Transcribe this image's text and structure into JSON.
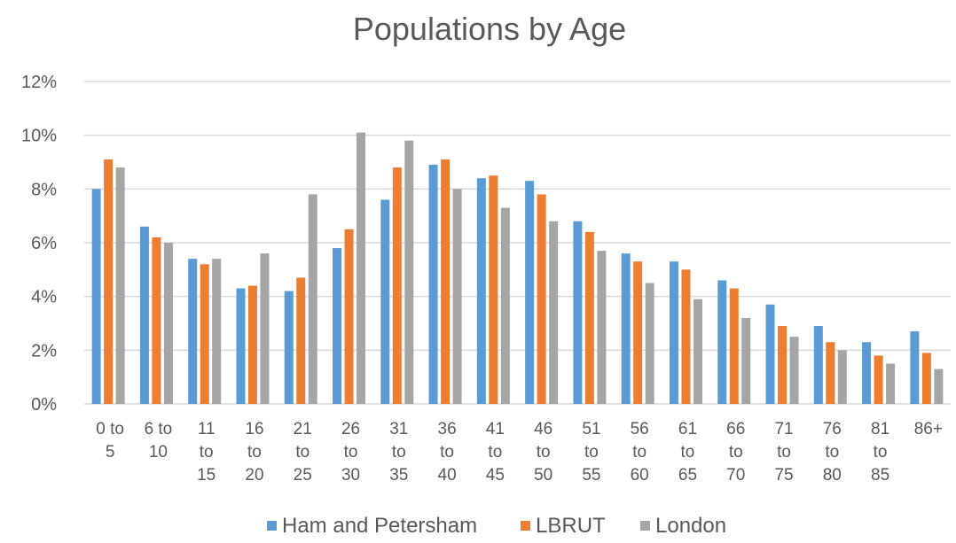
{
  "chart_data": {
    "type": "bar",
    "title": "Populations by Age",
    "xlabel": "",
    "ylabel": "",
    "ylim": [
      0,
      12
    ],
    "yticks": [
      "0%",
      "2%",
      "4%",
      "6%",
      "8%",
      "10%",
      "12%"
    ],
    "categories": [
      [
        "0 to",
        "5"
      ],
      [
        "6 to",
        "10"
      ],
      [
        "11",
        "to",
        "15"
      ],
      [
        "16",
        "to",
        "20"
      ],
      [
        "21",
        "to",
        "25"
      ],
      [
        "26",
        "to",
        "30"
      ],
      [
        "31",
        "to",
        "35"
      ],
      [
        "36",
        "to",
        "40"
      ],
      [
        "41",
        "to",
        "45"
      ],
      [
        "46",
        "to",
        "50"
      ],
      [
        "51",
        "to",
        "55"
      ],
      [
        "56",
        "to",
        "60"
      ],
      [
        "61",
        "to",
        "65"
      ],
      [
        "66",
        "to",
        "70"
      ],
      [
        "71",
        "to",
        "75"
      ],
      [
        "76",
        "to",
        "80"
      ],
      [
        "81",
        "to",
        "85"
      ],
      [
        "86+"
      ]
    ],
    "series": [
      {
        "name": "Ham and Petersham",
        "color": "#5b9bd5",
        "values": [
          8.0,
          6.6,
          5.4,
          4.3,
          4.2,
          5.8,
          7.6,
          8.9,
          8.4,
          8.3,
          6.8,
          5.6,
          5.3,
          4.6,
          3.7,
          2.9,
          2.3,
          2.7
        ]
      },
      {
        "name": "LBRUT",
        "color": "#ed7d31",
        "values": [
          9.1,
          6.2,
          5.2,
          4.4,
          4.7,
          6.5,
          8.8,
          9.1,
          8.5,
          7.8,
          6.4,
          5.3,
          5.0,
          4.3,
          2.9,
          2.3,
          1.8,
          1.9
        ]
      },
      {
        "name": "London",
        "color": "#a5a5a5",
        "values": [
          8.8,
          6.0,
          5.4,
          5.6,
          7.8,
          10.1,
          9.8,
          8.0,
          7.3,
          6.8,
          5.7,
          4.5,
          3.9,
          3.2,
          2.5,
          2.0,
          1.5,
          1.3
        ]
      }
    ],
    "grid": true,
    "legend_position": "bottom"
  }
}
